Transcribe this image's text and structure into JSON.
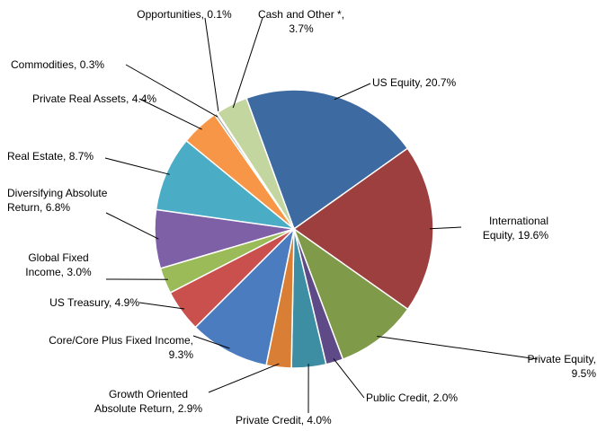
{
  "chart_data": {
    "type": "pie",
    "categories": [
      "US Equity,",
      "International Equity,",
      "Private Equity,",
      "Public Credit,",
      "Private Credit,",
      "Growth Oriented Absolute Return,",
      "Core/Core Plus Fixed Income,",
      "US Treasury,",
      "Global Fixed Income,",
      "Diversifying Absolute Return,",
      "Real Estate,",
      "Private Real Assets,",
      "Commodities,",
      "Opportunities,",
      "Cash and Other *,"
    ],
    "values": [
      20.7,
      19.6,
      9.5,
      2.0,
      4.0,
      2.9,
      9.3,
      4.9,
      3.0,
      6.8,
      8.7,
      4.4,
      0.3,
      0.1,
      3.7
    ],
    "value_labels": [
      "20.7%",
      "19.6%",
      "9.5%",
      "2.0%",
      "4.0%",
      "2.9%",
      "9.3%",
      "4.9%",
      "3.0%",
      "6.8%",
      "8.7%",
      "4.4%",
      "0.3%",
      "0.1%",
      "3.7%"
    ],
    "colors": [
      "#3e6aa2",
      "#9c3f3e",
      "#7f9a48",
      "#5e4a87",
      "#3d8ea2",
      "#d97f35",
      "#4b7cc0",
      "#c9504d",
      "#9bbb59",
      "#7e60a6",
      "#4bacc6",
      "#f79646",
      "#a5a5a5",
      "#d9d9d9",
      "#c4d6a0"
    ]
  }
}
